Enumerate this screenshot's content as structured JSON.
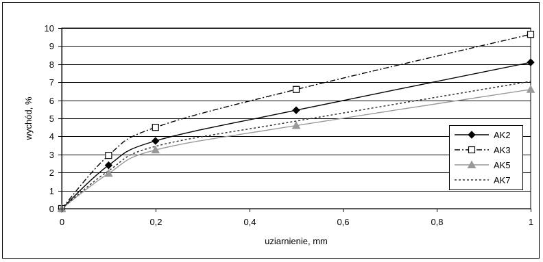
{
  "chart_data": {
    "type": "line",
    "title": "",
    "xlabel": "uziarnienie, mm",
    "ylabel": "wychód, %",
    "xlim": [
      0,
      1
    ],
    "ylim": [
      0,
      10
    ],
    "x_ticks": [
      0,
      0.2,
      0.4,
      0.6,
      0.8,
      1
    ],
    "x_tick_labels": [
      "0",
      "0,2",
      "0,4",
      "0,6",
      "0,8",
      "1"
    ],
    "y_ticks": [
      0,
      1,
      2,
      3,
      4,
      5,
      6,
      7,
      8,
      9,
      10
    ],
    "y_tick_labels": [
      "0",
      "1",
      "2",
      "3",
      "4",
      "5",
      "6",
      "7",
      "8",
      "9",
      "10"
    ],
    "grid": "horizontal",
    "legend_position": "right",
    "x": [
      0,
      0.1,
      0.2,
      0.5,
      1
    ],
    "series": [
      {
        "name": "AK2",
        "values": [
          0,
          2.4,
          3.75,
          5.45,
          8.1
        ],
        "color": "#000000",
        "dash": "solid",
        "marker": "diamond",
        "show_markers": true
      },
      {
        "name": "AK3",
        "values": [
          0,
          2.95,
          4.5,
          6.6,
          9.65
        ],
        "color": "#000000",
        "dash": "dashdot",
        "marker": "square-open",
        "show_markers": true
      },
      {
        "name": "AK5",
        "values": [
          0,
          1.95,
          3.25,
          4.6,
          6.6
        ],
        "color": "#999999",
        "dash": "solid",
        "marker": "triangle",
        "show_markers": true
      },
      {
        "name": "AK7",
        "values": [
          0,
          2.1,
          3.45,
          4.85,
          7.05
        ],
        "color": "#333333",
        "dash": "dotted",
        "marker": "none",
        "show_markers": false
      }
    ]
  }
}
